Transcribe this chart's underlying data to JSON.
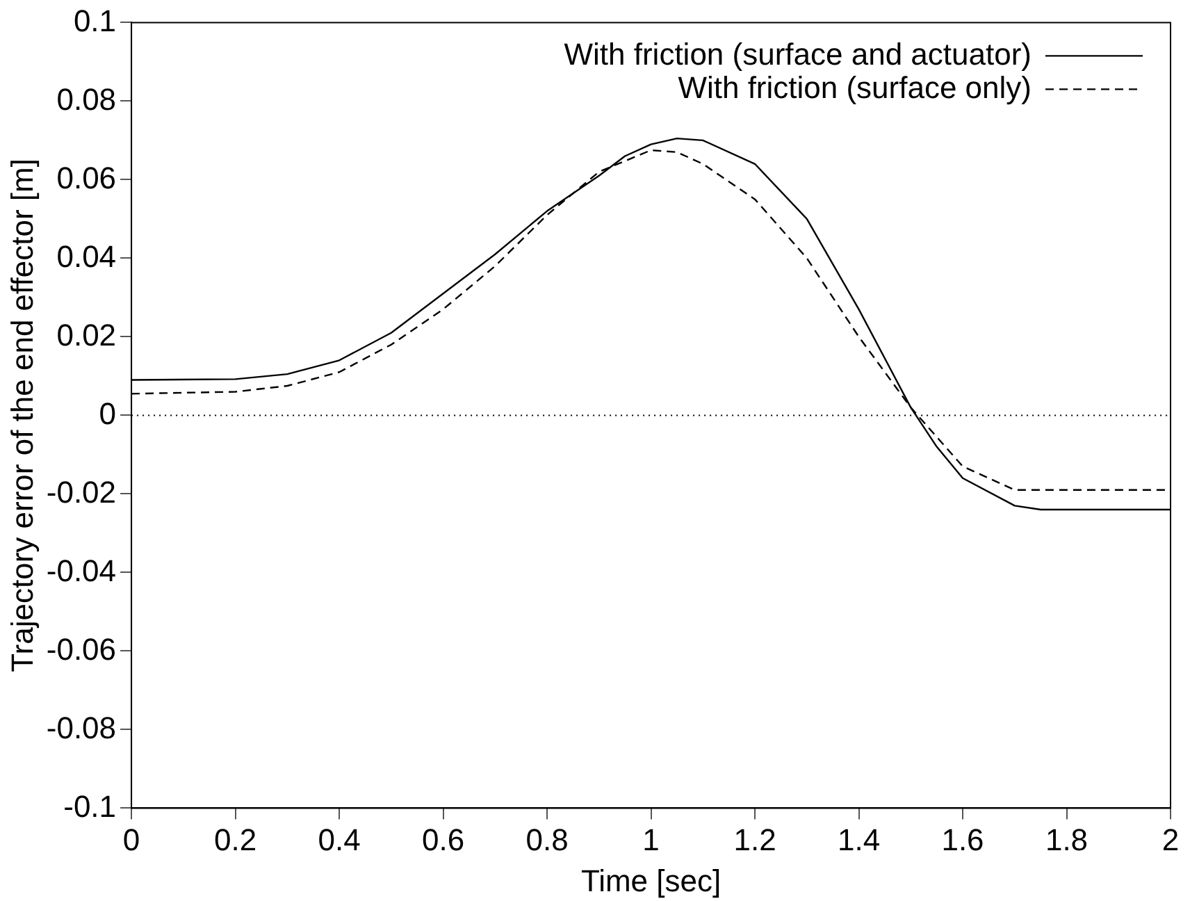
{
  "chart_data": {
    "type": "line",
    "xlabel": "Time [sec]",
    "ylabel": "Trajectory error of the end effector [m]",
    "xlim": [
      0,
      2
    ],
    "xticks": [
      0,
      0.2,
      0.4,
      0.6,
      0.8,
      1,
      1.2,
      1.4,
      1.6,
      1.8,
      2
    ],
    "ylim": [
      -0.1,
      0.1
    ],
    "yticks": [
      -0.1,
      -0.08,
      -0.06,
      -0.04,
      -0.02,
      0,
      0.02,
      0.04,
      0.06,
      0.08,
      0.1
    ],
    "grid": false,
    "legend": "top right",
    "marker": "none",
    "ref_lines": [
      {
        "axis": "y",
        "value": 0,
        "color": "#000000",
        "line_style": "dotted"
      }
    ],
    "series": [
      {
        "name": "With friction (surface and actuator)",
        "color": "#000000",
        "line_style": "solid",
        "x": [
          0,
          0.2,
          0.3,
          0.4,
          0.5,
          0.6,
          0.7,
          0.8,
          0.9,
          0.95,
          1,
          1.05,
          1.1,
          1.2,
          1.3,
          1.4,
          1.5,
          1.55,
          1.6,
          1.7,
          1.75,
          2
        ],
        "values": [
          0.009,
          0.0092,
          0.0105,
          0.014,
          0.021,
          0.031,
          0.041,
          0.052,
          0.061,
          0.066,
          0.069,
          0.0705,
          0.07,
          0.064,
          0.05,
          0.027,
          0.002,
          -0.008,
          -0.016,
          -0.023,
          -0.024,
          -0.024
        ]
      },
      {
        "name": "With friction (surface only)",
        "color": "#000000",
        "line_style": "dashed",
        "x": [
          0,
          0.2,
          0.3,
          0.4,
          0.5,
          0.6,
          0.7,
          0.8,
          0.9,
          1,
          1.05,
          1.1,
          1.2,
          1.3,
          1.4,
          1.5,
          1.6,
          1.7,
          1.75,
          2
        ],
        "values": [
          0.0055,
          0.006,
          0.0075,
          0.011,
          0.018,
          0.027,
          0.038,
          0.051,
          0.062,
          0.0675,
          0.067,
          0.064,
          0.055,
          0.04,
          0.02,
          0.002,
          -0.013,
          -0.019,
          -0.019,
          -0.019
        ]
      }
    ]
  }
}
